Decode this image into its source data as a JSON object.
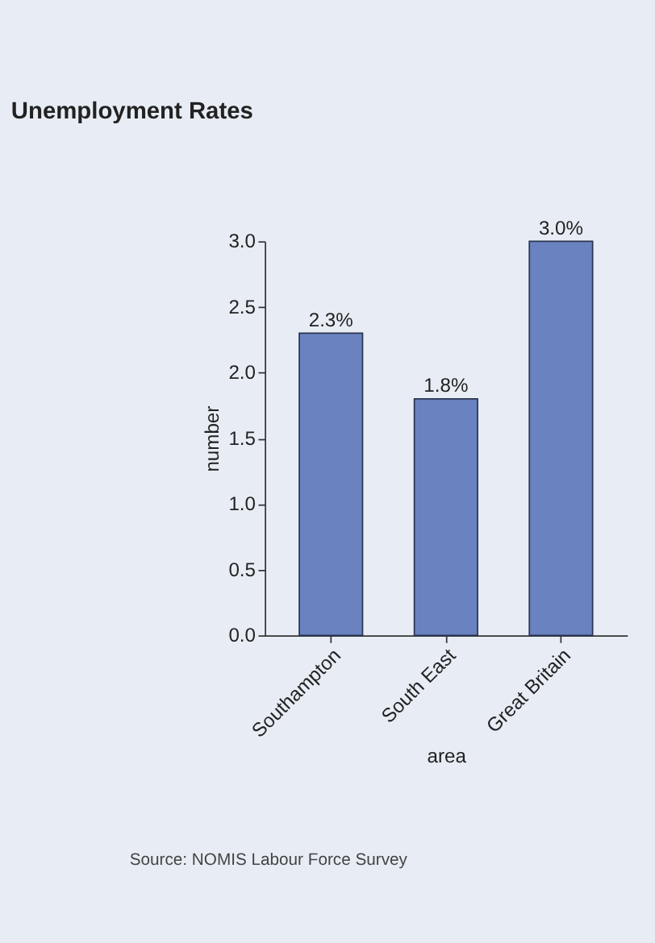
{
  "chart_data": {
    "type": "bar",
    "title": "Unemployment Rates",
    "xlabel": "area",
    "ylabel": "number",
    "categories": [
      "Southampton",
      "South East",
      "Great Britain"
    ],
    "values": [
      2.3,
      1.8,
      3.0
    ],
    "value_labels": [
      "2.3%",
      "1.8%",
      "3.0%"
    ],
    "color": "#6a82c0",
    "ylim": [
      0,
      3.0
    ],
    "yticks": [
      {
        "value": 0,
        "label": "0.0"
      },
      0.5,
      {
        "value": 1,
        "label": "1.0"
      },
      1.5,
      {
        "value": 2,
        "label": "2.0"
      },
      2.5,
      {
        "value": 3,
        "label": "3.0"
      }
    ],
    "grid": false,
    "annotations": [
      "Source: NOMIS Labour Force Survey"
    ]
  }
}
